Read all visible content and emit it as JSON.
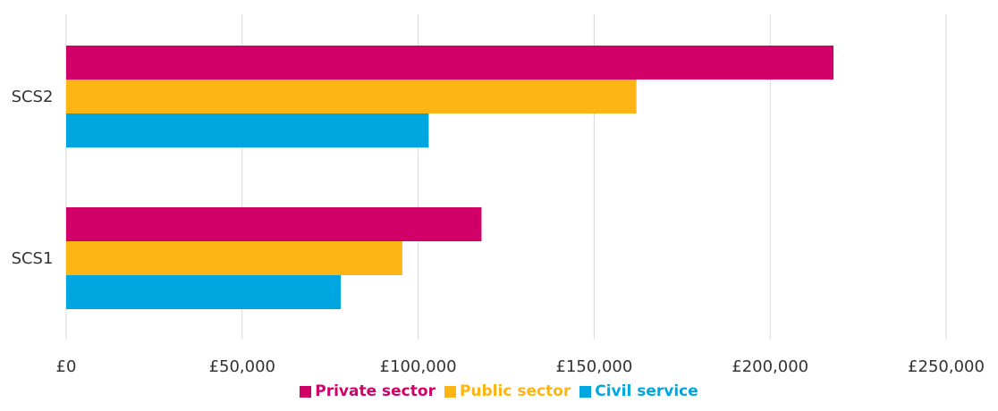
{
  "chart_data": {
    "type": "bar",
    "orientation": "horizontal",
    "categories": [
      "SCS2",
      "SCS1"
    ],
    "series": [
      {
        "name": "Private sector",
        "color": "#D10069",
        "values": [
          218000,
          118000
        ]
      },
      {
        "name": "Public sector",
        "color": "#FDB515",
        "values": [
          162000,
          95500
        ]
      },
      {
        "name": "Civil service",
        "color": "#00A6E0",
        "values": [
          103000,
          78000
        ]
      }
    ],
    "x_ticks": [
      "£0",
      "£50,000",
      "£100,000",
      "£150,000",
      "£200,000",
      "£250,000"
    ],
    "xlim": [
      0,
      250000
    ],
    "grid": "vertical",
    "legend_position": "bottom"
  }
}
